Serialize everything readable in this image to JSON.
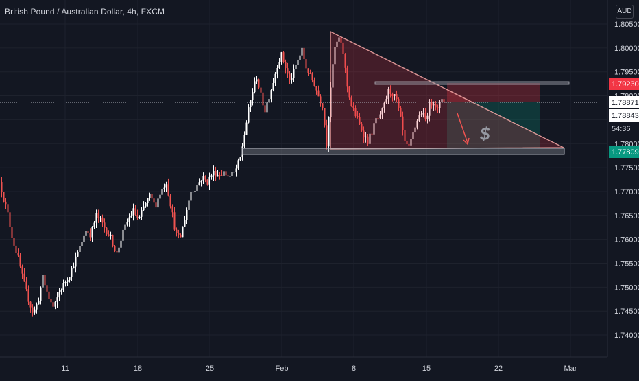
{
  "header": {
    "title": "British Pound / Australian Dollar, 4h, FXCM",
    "currency": "AUD"
  },
  "chart_data": {
    "type": "candlestick",
    "symbol": "British Pound / Australian Dollar",
    "interval": "4h",
    "source": "FXCM",
    "y_axis": {
      "ticks": [
        "1.80500",
        "1.80000",
        "1.79500",
        "1.79000",
        "1.78500",
        "1.78000",
        "1.77500",
        "1.77000",
        "1.76500",
        "1.76000",
        "1.75500",
        "1.75000",
        "1.74500",
        "1.74000"
      ],
      "range": [
        1.7375,
        1.8065
      ]
    },
    "x_axis": {
      "ticks": [
        "11",
        "18",
        "25",
        "Feb",
        "8",
        "15",
        "22",
        "Mar"
      ]
    },
    "price_labels": {
      "stop": "1.79230",
      "current": "1.78871",
      "current_alt": "1.78843",
      "countdown": "54:36",
      "target": "1.77809"
    },
    "colors": {
      "background": "#131722",
      "up": "#ffffff",
      "down": "#ef5350",
      "grid": "#1e222d",
      "triangle_fill": "#f23645",
      "triangle_edge": "#f7a9a7",
      "stop_zone": "#f23645",
      "target_zone": "#089981",
      "level_line": "#b2b5be"
    },
    "annotations": [
      "$"
    ]
  }
}
